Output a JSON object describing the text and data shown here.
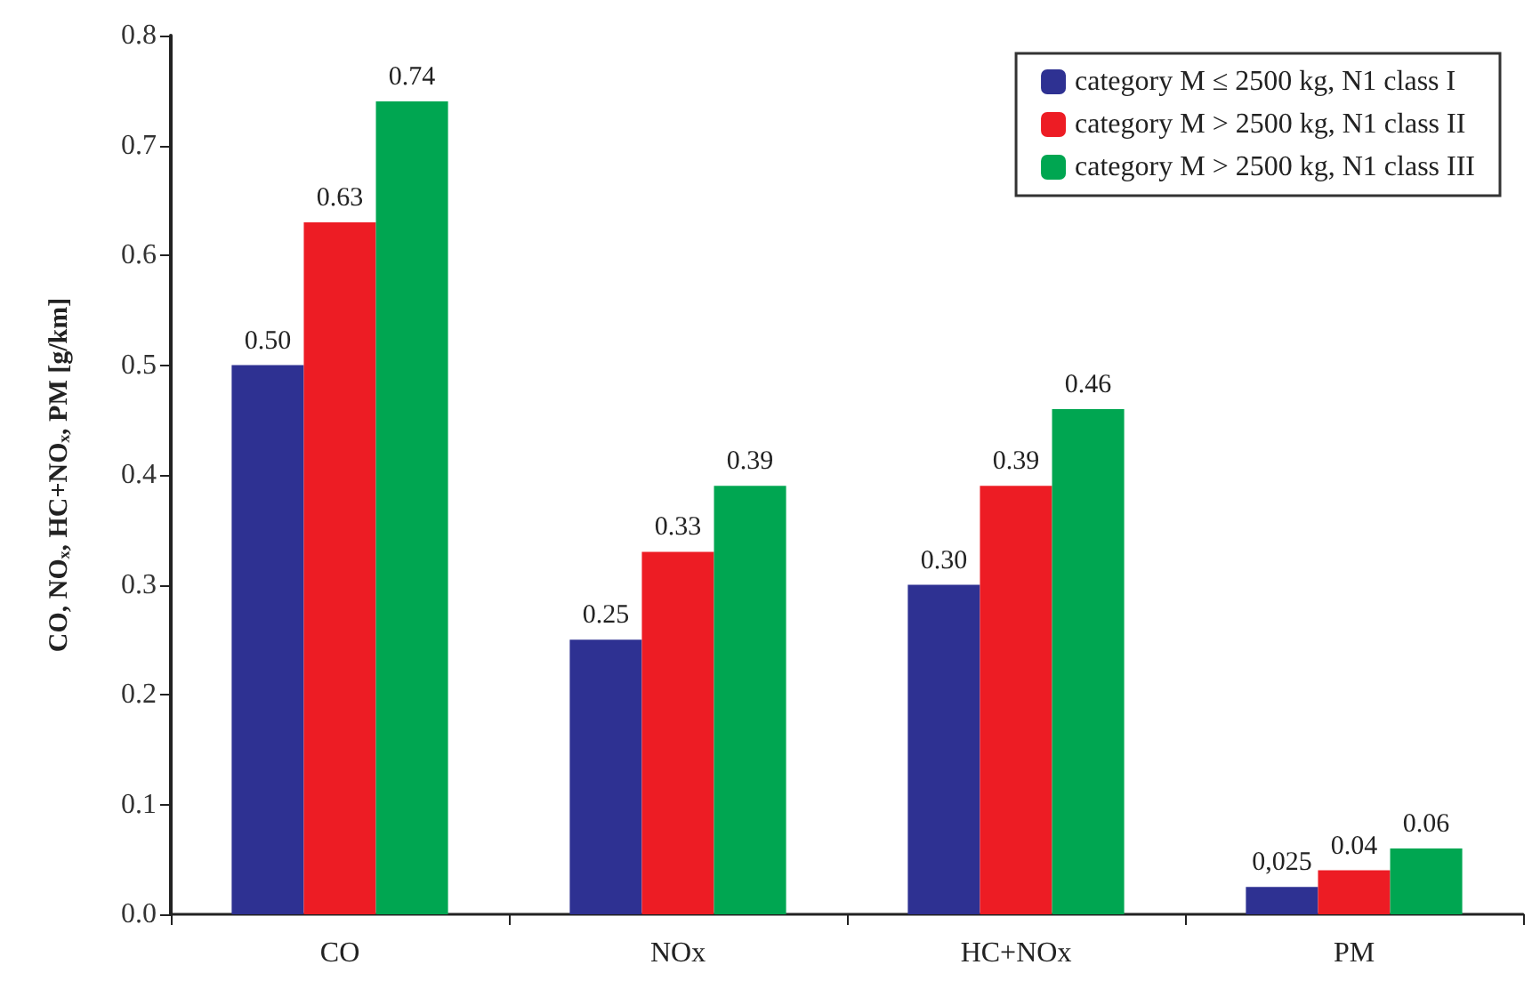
{
  "chart_data": {
    "type": "bar",
    "ylabel": "CO, NOₓ, HC+NOₓ, PM [g/km]",
    "categories": [
      "CO",
      "NOx",
      "HC+NOx",
      "PM"
    ],
    "series": [
      {
        "name": "category M ≤ 2500 kg, N1 class I",
        "color": "#2e3192",
        "values": [
          0.5,
          0.25,
          0.3,
          0.025
        ],
        "value_labels": [
          "0.50",
          "0.25",
          "0.30",
          "0,025"
        ]
      },
      {
        "name": "category M > 2500 kg, N1 class II",
        "color": "#ed1c24",
        "values": [
          0.63,
          0.33,
          0.39,
          0.04
        ],
        "value_labels": [
          "0.63",
          "0.33",
          "0.39",
          "0.04"
        ]
      },
      {
        "name": "category M > 2500 kg, N1 class III",
        "color": "#00a651",
        "values": [
          0.74,
          0.39,
          0.46,
          0.06
        ],
        "value_labels": [
          "0.74",
          "0.39",
          "0.46",
          "0.06"
        ]
      }
    ],
    "ylim": [
      0,
      0.8
    ],
    "yticks": [
      {
        "value": 0,
        "label": "0.0"
      },
      {
        "value": 0.1,
        "label": "0.1"
      },
      {
        "value": 0.2,
        "label": "0.2"
      },
      {
        "value": 0.3,
        "label": "0.3"
      },
      {
        "value": 0.4,
        "label": "0.4"
      },
      {
        "value": 0.5,
        "label": "0.5"
      },
      {
        "value": 0.6,
        "label": "0.6"
      },
      {
        "value": 0.7,
        "label": "0.7"
      },
      {
        "value": 0.8,
        "label": "0.8"
      }
    ],
    "grid": false,
    "legend": "top right"
  }
}
